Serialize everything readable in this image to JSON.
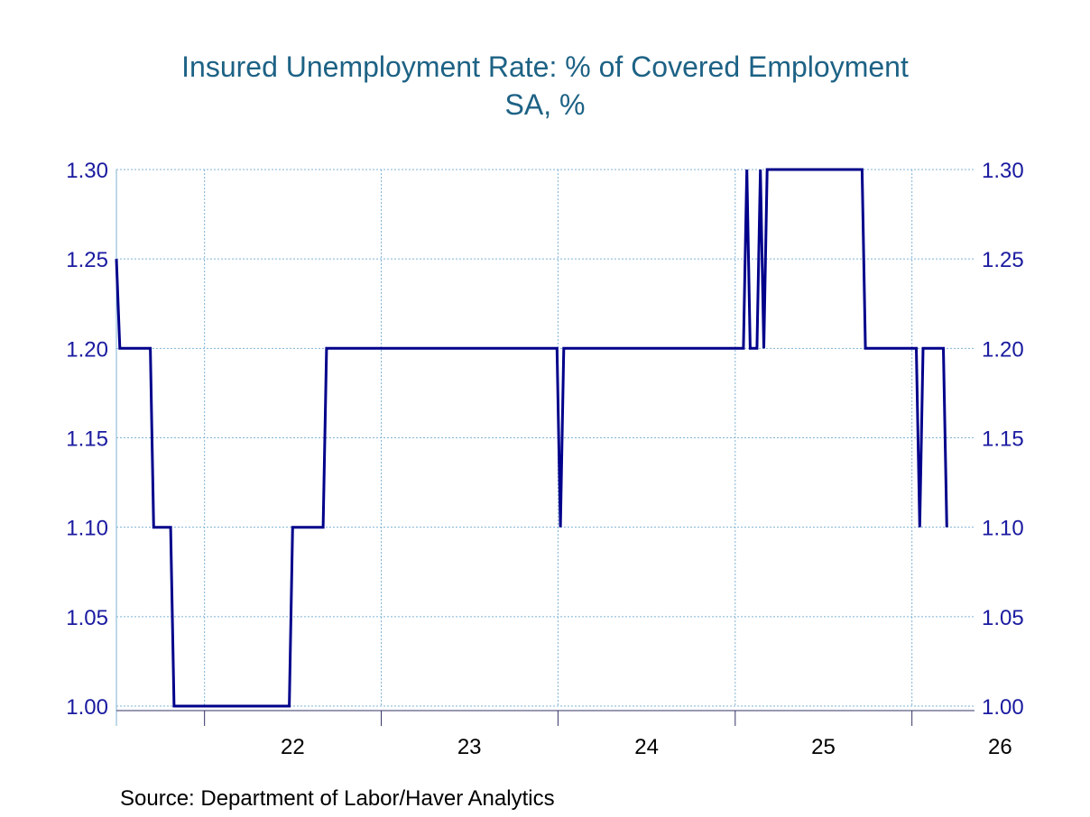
{
  "chart_data": {
    "type": "line",
    "title": "Insured Unemployment Rate: % of Covered Employment",
    "subtitle": "SA, %",
    "source": "Source:  Department of Labor/Haver Analytics",
    "x_tick_labels": [
      "22",
      "23",
      "24",
      "25",
      "26"
    ],
    "y_ticks": [
      "1.30",
      "1.25",
      "1.20",
      "1.15",
      "1.10",
      "1.05",
      "1.00"
    ],
    "y_ticks_right": [
      "1.30",
      "1.25",
      "1.20",
      "1.15",
      "1.10",
      "1.05",
      "1.00"
    ],
    "ylim": [
      1.0,
      1.3
    ],
    "xlim": [
      "2021-07-03",
      "2026-03-07"
    ],
    "grid": true,
    "line_color": "#00008b",
    "grid_color": "#7fb3d5",
    "tick_color": "#1a1aa0",
    "series": [
      {
        "values": [
          {
            "x": "2021-07-03",
            "y": 1.25
          },
          {
            "x": "2021-07-10",
            "y": 1.2
          },
          {
            "x": "2021-09-11",
            "y": 1.2
          },
          {
            "x": "2021-09-18",
            "y": 1.1
          },
          {
            "x": "2021-10-23",
            "y": 1.1
          },
          {
            "x": "2021-10-30",
            "y": 1.0
          },
          {
            "x": "2022-06-25",
            "y": 1.0
          },
          {
            "x": "2022-07-02",
            "y": 1.1
          },
          {
            "x": "2022-09-03",
            "y": 1.1
          },
          {
            "x": "2022-09-10",
            "y": 1.2
          },
          {
            "x": "2023-12-30",
            "y": 1.2
          },
          {
            "x": "2024-01-06",
            "y": 1.1
          },
          {
            "x": "2024-01-13",
            "y": 1.2
          },
          {
            "x": "2025-01-18",
            "y": 1.2
          },
          {
            "x": "2025-01-25",
            "y": 1.3
          },
          {
            "x": "2025-02-01",
            "y": 1.2
          },
          {
            "x": "2025-02-15",
            "y": 1.2
          },
          {
            "x": "2025-02-22",
            "y": 1.3
          },
          {
            "x": "2025-03-01",
            "y": 1.2
          },
          {
            "x": "2025-03-08",
            "y": 1.3
          },
          {
            "x": "2025-09-20",
            "y": 1.3
          },
          {
            "x": "2025-09-27",
            "y": 1.2
          },
          {
            "x": "2026-01-10",
            "y": 1.2
          },
          {
            "x": "2026-01-17",
            "y": 1.1
          },
          {
            "x": "2026-01-24",
            "y": 1.2
          },
          {
            "x": "2026-03-07",
            "y": 1.2
          },
          {
            "x": "2026-03-14",
            "y": 1.1
          }
        ]
      }
    ]
  }
}
